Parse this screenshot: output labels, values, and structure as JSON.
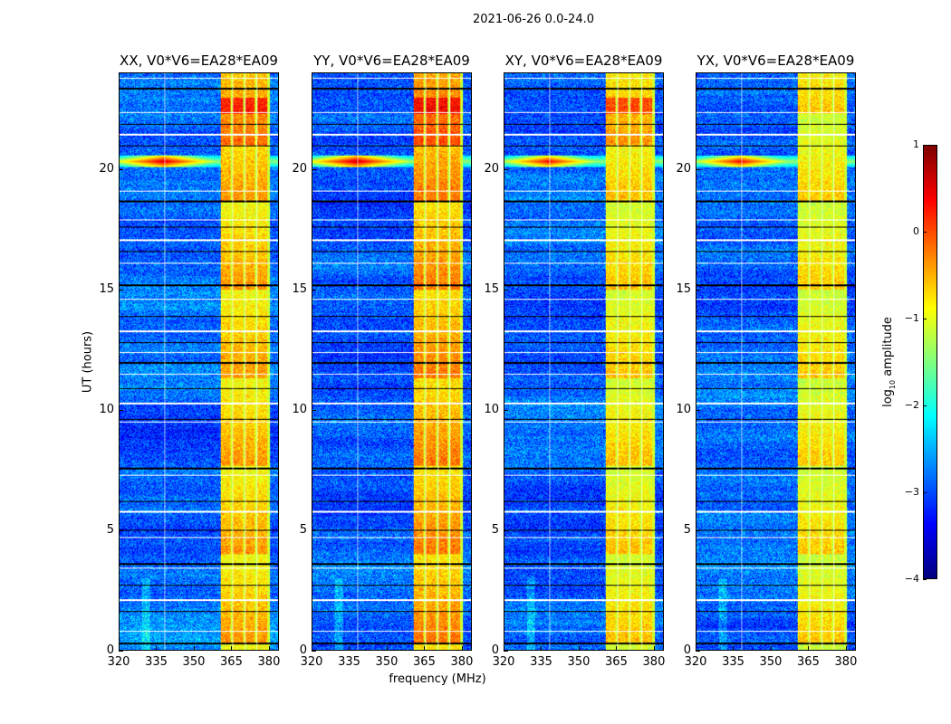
{
  "chart_data": {
    "type": "heatmap",
    "title": "2021-06-26 0.0-24.0",
    "xlabel": "frequency (MHz)",
    "ylabel": "UT (hours)",
    "xlim": [
      320,
      384
    ],
    "ylim": [
      0,
      24
    ],
    "xticks": [
      "320",
      "335",
      "350",
      "365",
      "380"
    ],
    "xtick_values": [
      320,
      335,
      350,
      365,
      380
    ],
    "yticks": [
      "0",
      "5",
      "10",
      "15",
      "20"
    ],
    "ytick_values": [
      0,
      5,
      10,
      15,
      20
    ],
    "panels": [
      {
        "title": "XX, V0*V6=EA28*EA09",
        "band_level": 0.0,
        "rfi_level": 0.6
      },
      {
        "title": "YY, V0*V6=EA28*EA09",
        "band_level": 0.15,
        "rfi_level": 0.7
      },
      {
        "title": "XY, V0*V6=EA28*EA09",
        "band_level": -0.2,
        "rfi_level": 0.4
      },
      {
        "title": "YX, V0*V6=EA28*EA09",
        "band_level": -0.25,
        "rfi_level": 0.4
      }
    ],
    "features": {
      "bright_band_mhz": [
        360.5,
        380.5
      ],
      "subband_edges_mhz": [
        365,
        370,
        375,
        380
      ],
      "rfi_time_h": 20.35,
      "rfi_center_mhz": 337.5,
      "background_level": -2.9,
      "flagged_times_h": [
        0.3,
        0.8,
        1.6,
        2.1,
        2.7,
        3.4,
        3.6,
        4.7,
        5.0,
        5.8,
        6.2,
        7.3,
        7.6,
        9.5,
        9.6,
        10.3,
        10.9,
        11.5,
        12.0,
        12.4,
        12.8,
        13.3,
        13.9,
        14.6,
        15.2,
        16.1,
        16.6,
        17.1,
        17.6,
        17.9,
        18.7,
        19.1,
        21.0,
        21.5,
        21.9,
        22.4,
        23.4,
        23.8
      ]
    },
    "colorbar": {
      "label_prefix": "log",
      "label_sub": "10",
      "label_suffix": " amplitude",
      "range": [
        -4,
        1
      ],
      "ticks": [
        "1",
        "0",
        "−1",
        "−2",
        "−3",
        "−4"
      ],
      "tick_values": [
        1,
        0,
        -1,
        -2,
        -3,
        -4
      ],
      "colormap": "jet"
    }
  }
}
